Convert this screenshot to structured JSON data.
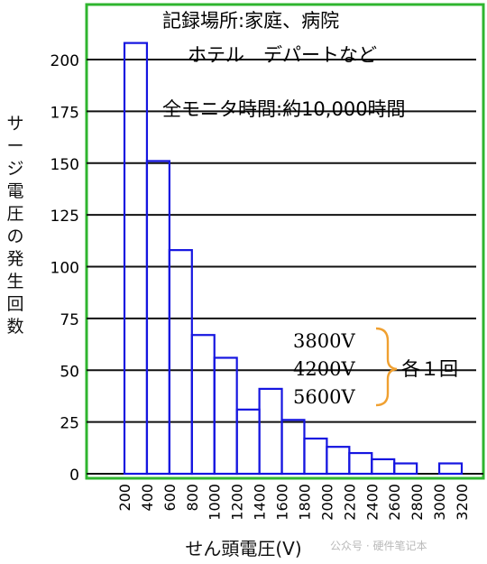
{
  "chart_data": {
    "type": "bar",
    "categories": [
      "200",
      "400",
      "600",
      "800",
      "1000",
      "1200",
      "1400",
      "1600",
      "1800",
      "2000",
      "2200",
      "2400",
      "2600",
      "2800",
      "3000",
      "3200"
    ],
    "bins": [
      {
        "from": 200,
        "to": 400,
        "value": 208
      },
      {
        "from": 400,
        "to": 600,
        "value": 151
      },
      {
        "from": 600,
        "to": 800,
        "value": 108
      },
      {
        "from": 800,
        "to": 1000,
        "value": 67
      },
      {
        "from": 1000,
        "to": 1200,
        "value": 56
      },
      {
        "from": 1200,
        "to": 1400,
        "value": 31
      },
      {
        "from": 1400,
        "to": 1600,
        "value": 41
      },
      {
        "from": 1600,
        "to": 1800,
        "value": 26
      },
      {
        "from": 1800,
        "to": 2000,
        "value": 17
      },
      {
        "from": 2000,
        "to": 2200,
        "value": 13
      },
      {
        "from": 2200,
        "to": 2400,
        "value": 10
      },
      {
        "from": 2400,
        "to": 2600,
        "value": 7
      },
      {
        "from": 2600,
        "to": 2800,
        "value": 5
      },
      {
        "from": 3000,
        "to": 3200,
        "value": 5
      }
    ],
    "yticks": [
      0,
      25,
      50,
      75,
      100,
      125,
      150,
      175,
      200
    ],
    "ylim": [
      0,
      220
    ],
    "xlim": [
      100,
      3300
    ],
    "grid": "horizontal",
    "xlabel": "せん頭電圧(V)",
    "ylabel": "サージ電圧の発生回数",
    "annotations": {
      "line1": "記録場所:家庭、病院",
      "line2": "ホテル　デパートなど",
      "line3": "全モニタ時間:約10,000時間",
      "outliers": [
        "3800V",
        "4200V",
        "5600V"
      ],
      "outliers_note": "各１回"
    }
  },
  "watermark": "公众号 · 硬件笔记本",
  "colors": {
    "bar_stroke": "#1515e0",
    "frame": "#2fb52f",
    "grid": "#111111",
    "brace": "#f0a030"
  }
}
